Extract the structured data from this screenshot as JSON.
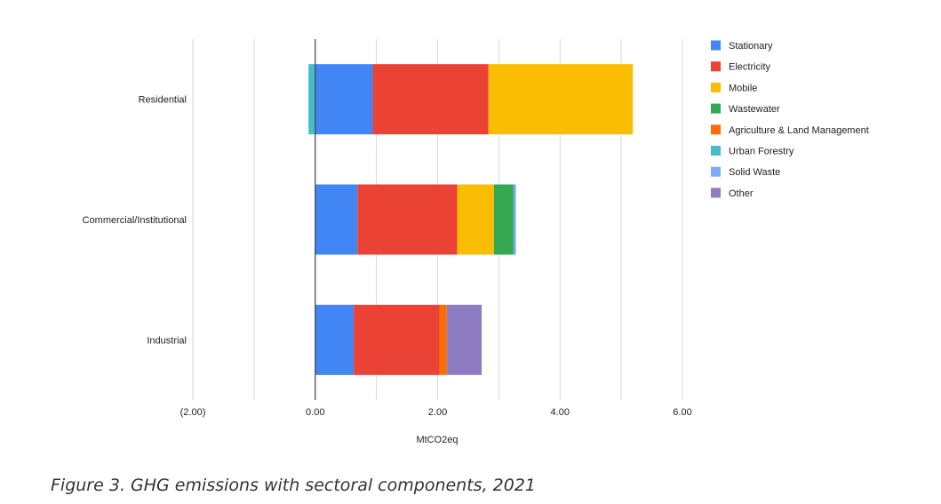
{
  "chart_data": {
    "type": "bar",
    "orientation": "horizontal",
    "stacked": true,
    "categories": [
      "Residential",
      "Commercial/Institutional",
      "Industrial"
    ],
    "xlabel": "MtCO2eq",
    "xlim": [
      -2,
      6
    ],
    "xticks": [
      -2,
      0,
      2,
      4,
      6
    ],
    "xtick_labels": [
      "(2.00)",
      "0.00",
      "2.00",
      "4.00",
      "6.00"
    ],
    "grid": true,
    "legend_position": "right",
    "series": [
      {
        "name": "Stationary",
        "color": "#4285f4",
        "values": [
          0.94,
          0.69,
          0.63
        ]
      },
      {
        "name": "Electricity",
        "color": "#ea4335",
        "values": [
          1.89,
          1.63,
          1.4
        ]
      },
      {
        "name": "Mobile",
        "color": "#fbbc04",
        "values": [
          2.36,
          0.6,
          0
        ]
      },
      {
        "name": "Wastewater",
        "color": "#34a853",
        "values": [
          0,
          0.32,
          0
        ]
      },
      {
        "name": "Agriculture & Land Management",
        "color": "#ff6d01",
        "values": [
          0,
          0,
          0.12
        ]
      },
      {
        "name": "Urban Forestry",
        "color": "#46bdc6",
        "values": [
          -0.11,
          0,
          0
        ]
      },
      {
        "name": "Solid Waste",
        "color": "#7baaf7",
        "values": [
          0,
          0.04,
          0
        ]
      },
      {
        "name": "Other",
        "color": "#8e7cc3",
        "values": [
          0,
          0,
          0.57
        ]
      }
    ]
  },
  "caption": "Figure 3. GHG emissions with sectoral components, 2021"
}
